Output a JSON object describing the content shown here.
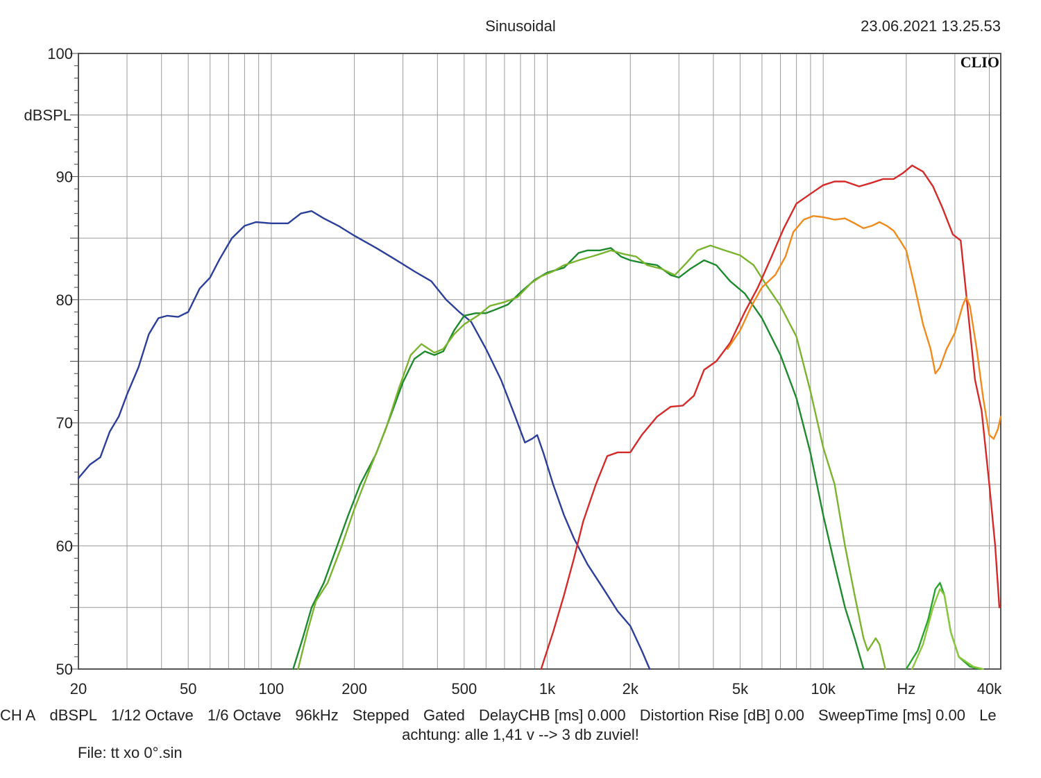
{
  "header": {
    "title": "Sinusoidal",
    "datetime": "23.06.2021 13.25.53"
  },
  "chart_data": {
    "type": "line",
    "brand": "CLIO",
    "ylabel": "dBSPL",
    "xscale": "log",
    "xlim": [
      20,
      44000
    ],
    "ylim": [
      50,
      100
    ],
    "grid": true,
    "yticks": [
      {
        "v": 100,
        "label": "100"
      },
      {
        "v": 90,
        "label": "90"
      },
      {
        "v": 80,
        "label": "80"
      },
      {
        "v": 70,
        "label": "70"
      },
      {
        "v": 60,
        "label": "60"
      },
      {
        "v": 50,
        "label": "50"
      }
    ],
    "xticks": [
      {
        "v": 20,
        "label": "20"
      },
      {
        "v": 50,
        "label": "50"
      },
      {
        "v": 100,
        "label": "100"
      },
      {
        "v": 200,
        "label": "200"
      },
      {
        "v": 500,
        "label": "500"
      },
      {
        "v": 1000,
        "label": "1k"
      },
      {
        "v": 2000,
        "label": "2k"
      },
      {
        "v": 5000,
        "label": "5k"
      },
      {
        "v": 10000,
        "label": "10k"
      },
      {
        "v": 20000,
        "label": "Hz"
      },
      {
        "v": 40000,
        "label": "40k"
      }
    ],
    "series": [
      {
        "color": "#2b3f9a",
        "points": [
          [
            20,
            65.5
          ],
          [
            22,
            66.6
          ],
          [
            24,
            67.2
          ],
          [
            26,
            69.3
          ],
          [
            28,
            70.5
          ],
          [
            30,
            72.3
          ],
          [
            33,
            74.5
          ],
          [
            36,
            77.2
          ],
          [
            39,
            78.5
          ],
          [
            42,
            78.7
          ],
          [
            46,
            78.6
          ],
          [
            50,
            79.0
          ],
          [
            55,
            80.9
          ],
          [
            60,
            81.8
          ],
          [
            65,
            83.3
          ],
          [
            72,
            85.0
          ],
          [
            80,
            86.0
          ],
          [
            88,
            86.3
          ],
          [
            100,
            86.2
          ],
          [
            115,
            86.2
          ],
          [
            128,
            87.0
          ],
          [
            140,
            87.2
          ],
          [
            155,
            86.6
          ],
          [
            175,
            86.0
          ],
          [
            200,
            85.2
          ],
          [
            240,
            84.2
          ],
          [
            280,
            83.3
          ],
          [
            330,
            82.3
          ],
          [
            380,
            81.5
          ],
          [
            430,
            80.0
          ],
          [
            480,
            79.0
          ],
          [
            530,
            78.2
          ],
          [
            600,
            76.0
          ],
          [
            680,
            73.5
          ],
          [
            760,
            70.7
          ],
          [
            830,
            68.4
          ],
          [
            880,
            68.7
          ],
          [
            920,
            69.0
          ],
          [
            970,
            67.5
          ],
          [
            1050,
            65.0
          ],
          [
            1150,
            62.5
          ],
          [
            1250,
            60.6
          ],
          [
            1400,
            58.5
          ],
          [
            1600,
            56.5
          ],
          [
            1800,
            54.7
          ],
          [
            2000,
            53.5
          ],
          [
            2200,
            51.5
          ],
          [
            2350,
            50.0
          ]
        ]
      },
      {
        "color": "#1e8a2e",
        "points": [
          [
            120,
            50.0
          ],
          [
            130,
            52.5
          ],
          [
            140,
            55.0
          ],
          [
            155,
            57.0
          ],
          [
            170,
            59.5
          ],
          [
            190,
            62.5
          ],
          [
            210,
            65.0
          ],
          [
            240,
            67.5
          ],
          [
            270,
            70.5
          ],
          [
            300,
            73.3
          ],
          [
            330,
            75.2
          ],
          [
            360,
            75.8
          ],
          [
            390,
            75.5
          ],
          [
            420,
            75.8
          ],
          [
            460,
            77.5
          ],
          [
            500,
            78.7
          ],
          [
            550,
            78.9
          ],
          [
            600,
            78.9
          ],
          [
            650,
            79.2
          ],
          [
            720,
            79.6
          ],
          [
            800,
            80.6
          ],
          [
            900,
            81.6
          ],
          [
            1000,
            82.2
          ],
          [
            1150,
            82.6
          ],
          [
            1300,
            83.8
          ],
          [
            1400,
            84.0
          ],
          [
            1550,
            84.0
          ],
          [
            1700,
            84.2
          ],
          [
            1850,
            83.5
          ],
          [
            2000,
            83.2
          ],
          [
            2200,
            83.0
          ],
          [
            2500,
            82.8
          ],
          [
            2800,
            82.0
          ],
          [
            3000,
            81.8
          ],
          [
            3300,
            82.5
          ],
          [
            3700,
            83.2
          ],
          [
            4100,
            82.8
          ],
          [
            4600,
            81.5
          ],
          [
            5200,
            80.5
          ],
          [
            6000,
            78.5
          ],
          [
            7000,
            75.5
          ],
          [
            8000,
            72.0
          ],
          [
            9000,
            67.5
          ],
          [
            10000,
            62.5
          ],
          [
            11000,
            58.5
          ],
          [
            12000,
            55.0
          ],
          [
            13000,
            52.5
          ],
          [
            14000,
            50.0
          ]
        ]
      },
      {
        "color": "#7ab32e",
        "points": [
          [
            125,
            50.0
          ],
          [
            135,
            53.0
          ],
          [
            145,
            55.5
          ],
          [
            160,
            57.0
          ],
          [
            180,
            60.0
          ],
          [
            200,
            63.0
          ],
          [
            230,
            66.5
          ],
          [
            260,
            69.5
          ],
          [
            290,
            72.8
          ],
          [
            320,
            75.5
          ],
          [
            350,
            76.4
          ],
          [
            390,
            75.7
          ],
          [
            420,
            76.0
          ],
          [
            460,
            77.2
          ],
          [
            500,
            78.0
          ],
          [
            560,
            78.7
          ],
          [
            620,
            79.5
          ],
          [
            700,
            79.8
          ],
          [
            780,
            80.2
          ],
          [
            870,
            81.3
          ],
          [
            950,
            81.9
          ],
          [
            1050,
            82.3
          ],
          [
            1150,
            82.8
          ],
          [
            1300,
            83.2
          ],
          [
            1500,
            83.6
          ],
          [
            1700,
            84.0
          ],
          [
            1900,
            83.7
          ],
          [
            2100,
            83.5
          ],
          [
            2300,
            82.8
          ],
          [
            2600,
            82.5
          ],
          [
            2900,
            82.0
          ],
          [
            3200,
            83.0
          ],
          [
            3500,
            84.0
          ],
          [
            3900,
            84.4
          ],
          [
            4400,
            84.0
          ],
          [
            5000,
            83.6
          ],
          [
            5600,
            82.8
          ],
          [
            6300,
            81.0
          ],
          [
            7000,
            79.5
          ],
          [
            8000,
            77.0
          ],
          [
            9000,
            72.5
          ],
          [
            10000,
            68.0
          ],
          [
            11000,
            65.0
          ],
          [
            12000,
            60.0
          ],
          [
            13000,
            56.0
          ],
          [
            14000,
            52.5
          ],
          [
            14500,
            51.5
          ],
          [
            15000,
            52.0
          ],
          [
            15500,
            52.5
          ],
          [
            16000,
            52.0
          ],
          [
            16800,
            50.0
          ]
        ]
      },
      {
        "color": "#2aa42d",
        "points": [
          [
            20000,
            50.0
          ],
          [
            22000,
            51.5
          ],
          [
            24000,
            54.0
          ],
          [
            25500,
            56.5
          ],
          [
            26500,
            57.0
          ],
          [
            27500,
            56.0
          ],
          [
            29000,
            53.0
          ],
          [
            31000,
            51.0
          ],
          [
            34000,
            50.2
          ],
          [
            37000,
            50.0
          ]
        ]
      },
      {
        "color": "#8cc63f",
        "points": [
          [
            21000,
            50.0
          ],
          [
            23000,
            52.0
          ],
          [
            25000,
            55.0
          ],
          [
            26500,
            56.5
          ],
          [
            27500,
            56.0
          ],
          [
            29000,
            53.0
          ],
          [
            31000,
            51.0
          ],
          [
            35000,
            50.2
          ],
          [
            38000,
            50.0
          ]
        ]
      },
      {
        "color": "#d42a2a",
        "points": [
          [
            950,
            50.0
          ],
          [
            1050,
            53.0
          ],
          [
            1150,
            56.0
          ],
          [
            1250,
            59.0
          ],
          [
            1350,
            62.0
          ],
          [
            1500,
            65.0
          ],
          [
            1650,
            67.3
          ],
          [
            1800,
            67.6
          ],
          [
            2000,
            67.6
          ],
          [
            2200,
            69.0
          ],
          [
            2500,
            70.5
          ],
          [
            2800,
            71.3
          ],
          [
            3100,
            71.4
          ],
          [
            3400,
            72.2
          ],
          [
            3700,
            74.3
          ],
          [
            4100,
            75.0
          ],
          [
            4600,
            76.5
          ],
          [
            5200,
            79.0
          ],
          [
            5800,
            81.0
          ],
          [
            6500,
            83.5
          ],
          [
            7200,
            85.8
          ],
          [
            8000,
            87.8
          ],
          [
            9000,
            88.6
          ],
          [
            10000,
            89.3
          ],
          [
            11000,
            89.6
          ],
          [
            12000,
            89.6
          ],
          [
            13500,
            89.2
          ],
          [
            15000,
            89.5
          ],
          [
            16500,
            89.8
          ],
          [
            18000,
            89.8
          ],
          [
            19500,
            90.3
          ],
          [
            21000,
            90.9
          ],
          [
            23000,
            90.4
          ],
          [
            25000,
            89.2
          ],
          [
            27000,
            87.5
          ],
          [
            29500,
            85.3
          ],
          [
            31500,
            84.8
          ],
          [
            33500,
            79.0
          ],
          [
            35500,
            73.5
          ],
          [
            37500,
            71.0
          ],
          [
            40000,
            65.0
          ],
          [
            42000,
            60.0
          ],
          [
            43500,
            55.0
          ]
        ]
      },
      {
        "color": "#f08a1c",
        "points": [
          [
            4500,
            76.0
          ],
          [
            5000,
            77.5
          ],
          [
            5500,
            79.5
          ],
          [
            6000,
            81.0
          ],
          [
            6700,
            82.0
          ],
          [
            7300,
            83.5
          ],
          [
            7800,
            85.5
          ],
          [
            8500,
            86.5
          ],
          [
            9200,
            86.8
          ],
          [
            10000,
            86.7
          ],
          [
            11000,
            86.5
          ],
          [
            12000,
            86.6
          ],
          [
            13000,
            86.2
          ],
          [
            14000,
            85.8
          ],
          [
            15000,
            86.0
          ],
          [
            16000,
            86.3
          ],
          [
            17000,
            86.0
          ],
          [
            18000,
            85.6
          ],
          [
            19000,
            84.8
          ],
          [
            20000,
            84.0
          ],
          [
            21500,
            81.0
          ],
          [
            23000,
            78.0
          ],
          [
            24500,
            76.0
          ],
          [
            25500,
            74.0
          ],
          [
            26500,
            74.5
          ],
          [
            28000,
            76.0
          ],
          [
            30000,
            77.3
          ],
          [
            32000,
            79.5
          ],
          [
            33000,
            80.2
          ],
          [
            34000,
            79.5
          ],
          [
            36000,
            76.0
          ],
          [
            38000,
            72.0
          ],
          [
            40000,
            69.0
          ],
          [
            41500,
            68.7
          ],
          [
            43000,
            69.5
          ],
          [
            44000,
            70.5
          ]
        ]
      }
    ]
  },
  "status_bar": {
    "items": [
      "CH A",
      "dBSPL",
      "1/12 Octave",
      "1/6 Octave",
      "96kHz",
      "Stepped",
      "Gated",
      "DelayCHB [ms] 0.000",
      "Distortion Rise [dB] 0.00",
      "SweepTime [ms] 0.00",
      "Le"
    ],
    "note": "achtung: alle 1,41 v --> 3 db zuviel!",
    "file": "File: tt xo 0°.sin"
  }
}
